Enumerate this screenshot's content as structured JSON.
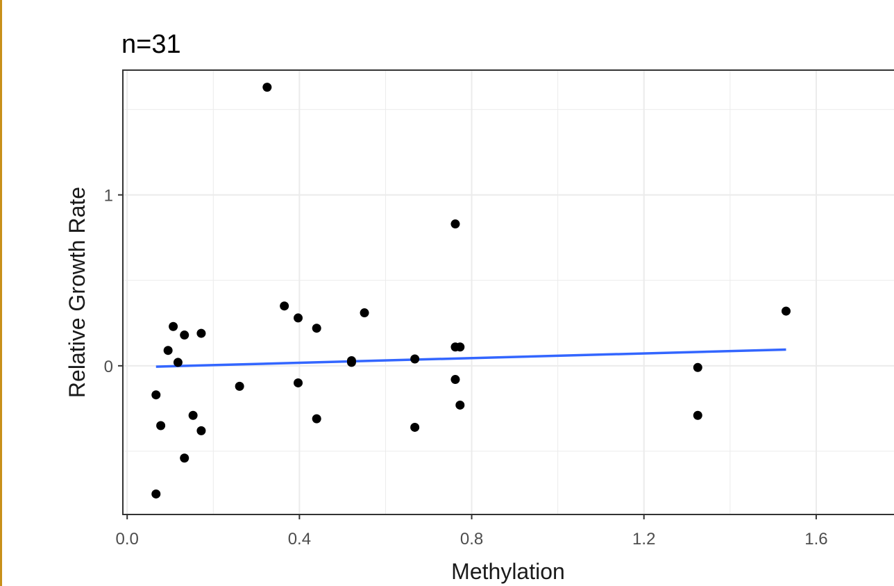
{
  "chart_data": {
    "type": "scatter",
    "title": "n=31",
    "xlabel": "Methylation",
    "ylabel": "Relative Growth Rate",
    "xlim": [
      -0.01,
      1.8
    ],
    "ylim": [
      -0.87,
      1.73
    ],
    "x_ticks": [
      0.0,
      0.4,
      0.8,
      1.2,
      1.6
    ],
    "x_tick_labels": [
      "0.0",
      "0.4",
      "0.8",
      "1.2",
      "1.6"
    ],
    "y_ticks": [
      0,
      1
    ],
    "y_tick_labels": [
      "0",
      "1"
    ],
    "grid": true,
    "theme": "bw",
    "points": {
      "x": [
        0.067,
        0.067,
        0.078,
        0.095,
        0.107,
        0.118,
        0.133,
        0.133,
        0.153,
        0.172,
        0.172,
        0.261,
        0.325,
        0.365,
        0.397,
        0.397,
        0.44,
        0.44,
        0.521,
        0.521,
        0.551,
        0.668,
        0.668,
        0.762,
        0.762,
        0.762,
        0.773,
        0.773,
        1.325,
        1.325,
        1.53
      ],
      "y": [
        -0.17,
        -0.75,
        -0.35,
        0.09,
        0.23,
        0.02,
        0.18,
        -0.54,
        -0.29,
        0.19,
        -0.38,
        -0.12,
        1.63,
        0.35,
        0.28,
        -0.1,
        0.22,
        -0.31,
        0.02,
        0.03,
        0.31,
        0.04,
        -0.36,
        0.83,
        -0.08,
        0.11,
        -0.23,
        0.11,
        -0.01,
        -0.29,
        0.32
      ]
    },
    "trend_line": {
      "x": [
        0.067,
        1.53
      ],
      "y": [
        -0.005,
        0.095
      ]
    },
    "colors": {
      "points": "#000000",
      "trend_line": "#3366ff",
      "panel_border": "#333333",
      "grid": "#ebebeb"
    }
  }
}
